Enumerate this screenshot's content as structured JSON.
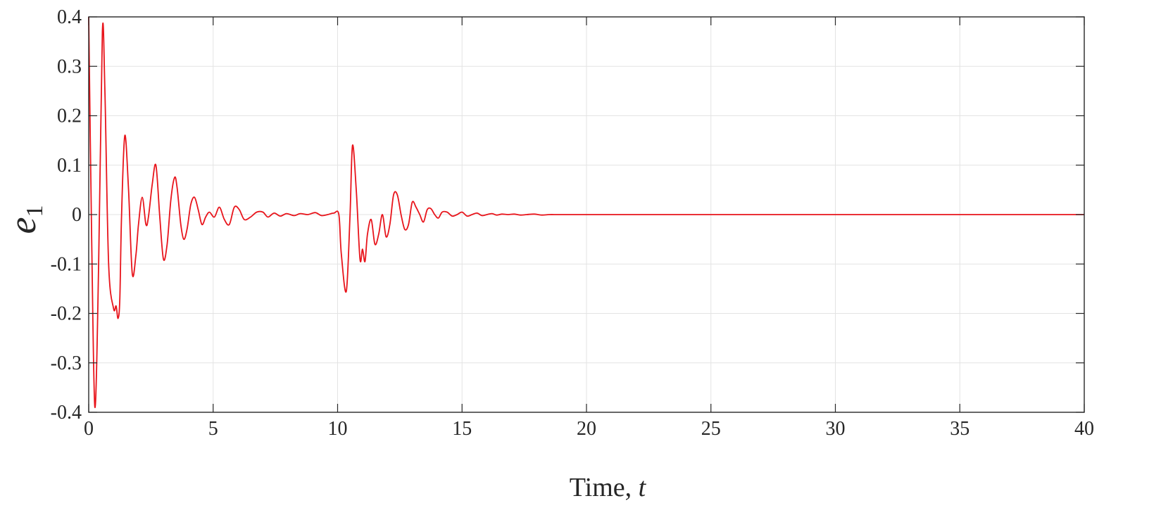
{
  "chart_data": {
    "type": "line",
    "title": "",
    "xlabel": "Time, ",
    "xlabel_var": "t",
    "ylabel": "e",
    "ylabel_sub": "1",
    "xlim": [
      0,
      40
    ],
    "ylim": [
      -0.4,
      0.4
    ],
    "xticks": [
      0,
      5,
      10,
      15,
      20,
      25,
      30,
      35,
      40
    ],
    "yticks": [
      0.4,
      0.3,
      0.2,
      0.1,
      0,
      -0.1,
      -0.2,
      -0.3,
      -0.4
    ],
    "xtick_labels": [
      "0",
      "5",
      "10",
      "15",
      "20",
      "25",
      "30",
      "35",
      "40"
    ],
    "ytick_labels": [
      "0.4",
      "0.3",
      "0.2",
      "0.1",
      "0",
      "-0.1",
      "-0.2",
      "-0.3",
      "-0.4"
    ],
    "grid": true,
    "series": [
      {
        "color": "#e8141b",
        "x": [
          0,
          0.12,
          0.25,
          0.4,
          0.55,
          0.65,
          0.8,
          1.0,
          1.1,
          1.18,
          1.25,
          1.32,
          1.45,
          1.6,
          1.75,
          1.9,
          2.0,
          2.15,
          2.3,
          2.4,
          2.55,
          2.7,
          2.85,
          3.0,
          3.15,
          3.3,
          3.45,
          3.55,
          3.7,
          3.82,
          3.95,
          4.1,
          4.25,
          4.4,
          4.55,
          4.7,
          4.85,
          5.05,
          5.25,
          5.45,
          5.65,
          5.85,
          6.05,
          6.25,
          6.5,
          6.75,
          7.0,
          7.2,
          7.45,
          7.7,
          7.95,
          8.25,
          8.5,
          8.8,
          9.1,
          9.35,
          9.6,
          9.85,
          10.05,
          10.15,
          10.35,
          10.5,
          10.6,
          10.75,
          10.9,
          11.0,
          11.1,
          11.2,
          11.35,
          11.5,
          11.65,
          11.8,
          11.95,
          12.1,
          12.25,
          12.4,
          12.55,
          12.7,
          12.85,
          13.0,
          13.15,
          13.3,
          13.45,
          13.6,
          13.75,
          13.9,
          14.05,
          14.2,
          14.4,
          14.6,
          14.8,
          15.0,
          15.2,
          15.4,
          15.6,
          15.8,
          16.0,
          16.2,
          16.4,
          16.6,
          16.85,
          17.1,
          17.35,
          17.6,
          17.9,
          18.2,
          18.5,
          18.8,
          19.1,
          19.4,
          19.7,
          20.0,
          20.3,
          21,
          25,
          30,
          35,
          40
        ],
        "y": [
          0.4,
          -0.05,
          -0.39,
          -0.1,
          0.37,
          0.25,
          -0.1,
          -0.19,
          -0.185,
          -0.21,
          -0.17,
          0.0,
          0.16,
          0.05,
          -0.12,
          -0.08,
          -0.02,
          0.035,
          -0.02,
          -0.005,
          0.06,
          0.1,
          0.0,
          -0.09,
          -0.06,
          0.03,
          0.075,
          0.055,
          -0.02,
          -0.05,
          -0.03,
          0.02,
          0.035,
          0.01,
          -0.02,
          -0.005,
          0.005,
          -0.005,
          0.015,
          -0.01,
          -0.02,
          0.015,
          0.01,
          -0.01,
          -0.005,
          0.005,
          0.005,
          -0.005,
          0.003,
          -0.003,
          0.002,
          -0.002,
          0.002,
          0.0,
          0.004,
          -0.002,
          0.0,
          0.003,
          0.0,
          -0.08,
          -0.155,
          0.0,
          0.14,
          0.05,
          -0.09,
          -0.07,
          -0.095,
          -0.04,
          -0.01,
          -0.06,
          -0.04,
          0.0,
          -0.045,
          -0.02,
          0.04,
          0.04,
          0.0,
          -0.03,
          -0.02,
          0.025,
          0.015,
          0.0,
          -0.015,
          0.01,
          0.012,
          0.0,
          -0.007,
          0.005,
          0.005,
          -0.003,
          0.0,
          0.005,
          -0.003,
          0.0,
          0.003,
          -0.002,
          0.0,
          0.002,
          -0.001,
          0.001,
          0.0,
          0.001,
          -0.001,
          0.0,
          0.001,
          -0.001,
          0.0,
          0.0,
          0.0,
          0.0,
          0.0,
          0.0,
          0.0,
          0.0,
          0.0,
          0.0,
          0.0,
          0.0
        ]
      }
    ]
  }
}
